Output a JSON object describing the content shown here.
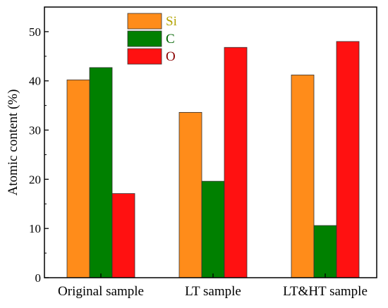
{
  "chart_data": {
    "type": "bar",
    "title": "",
    "xlabel": "",
    "ylabel": "Atomic content (%)",
    "ylim": [
      0,
      55
    ],
    "yticks": [
      0,
      10,
      20,
      30,
      40,
      50
    ],
    "grid": false,
    "legend_position": "top-center",
    "categories": [
      "Original sample",
      "LT sample",
      "LT&HT sample"
    ],
    "series": [
      {
        "name": "Si",
        "color": "#FF8C1A",
        "values": [
          40.2,
          33.6,
          41.2
        ]
      },
      {
        "name": "C",
        "color": "#008000",
        "values": [
          42.7,
          19.6,
          10.6
        ]
      },
      {
        "name": "O",
        "color": "#FF1111",
        "values": [
          17.1,
          46.8,
          48.0
        ]
      }
    ],
    "legend_text_colors": {
      "Si": "#B3A300",
      "C": "#006400",
      "O": "#8B0000"
    }
  }
}
